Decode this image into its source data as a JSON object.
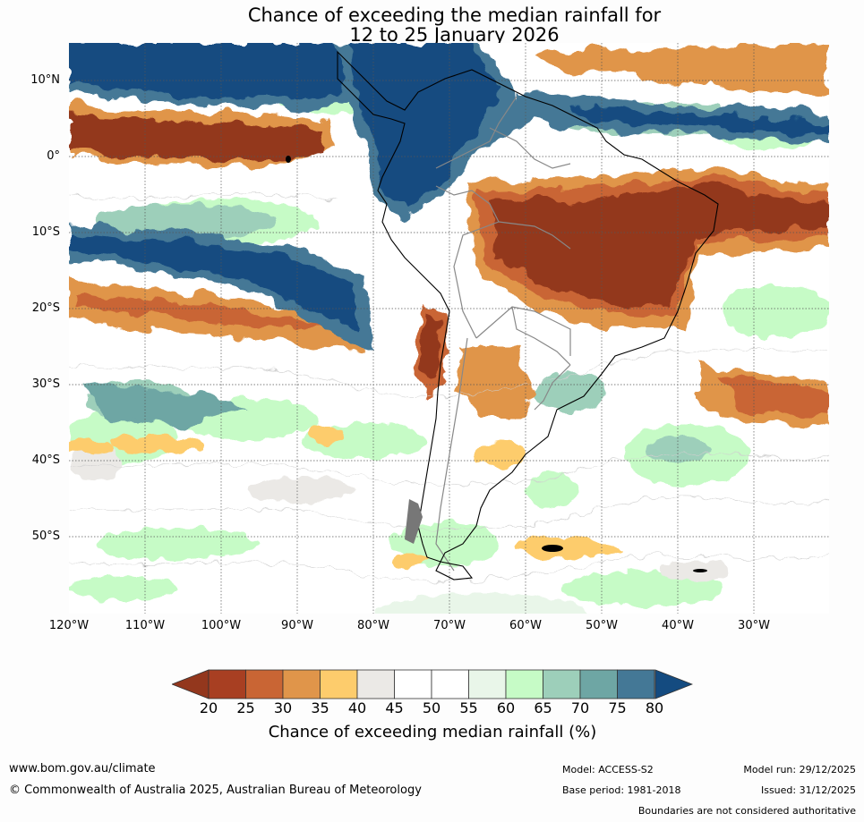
{
  "title": {
    "line1": "Chance of exceeding the median rainfall for",
    "line2": "12 to 25 January 2026"
  },
  "map": {
    "lat_labels": [
      "10°N",
      "0°",
      "10°S",
      "20°S",
      "30°S",
      "40°S",
      "50°S"
    ],
    "lon_labels": [
      "120°W",
      "110°W",
      "100°W",
      "90°W",
      "80°W",
      "70°W",
      "60°W",
      "50°W",
      "40°W",
      "30°W"
    ]
  },
  "colorbar": {
    "ticks": [
      "20",
      "25",
      "30",
      "35",
      "40",
      "45",
      "50",
      "55",
      "60",
      "65",
      "70",
      "75",
      "80"
    ],
    "colors": [
      "#a83f22",
      "#c96534",
      "#e0954a",
      "#fdcc6c",
      "#ebe9e6",
      "#ffffff",
      "#ffffff",
      "#e9f6e9",
      "#c6fbc6",
      "#9dcfba",
      "#6ea6a4",
      "#447896"
    ],
    "under_color": "#93371d",
    "over_color": "#144b80",
    "label": "Chance of exceeding median rainfall (%)"
  },
  "footer": {
    "url": "www.bom.gov.au/climate",
    "copyright": "© Commonwealth of Australia 2025, Australian Bureau of Meteorology",
    "model": "Model: ACCESS-S2",
    "base_period": "Base period: 1981-2018",
    "model_run": "Model run: 29/12/2025",
    "issued": "Issued: 31/12/2025",
    "boundaries_note": "Boundaries are not considered authoritative"
  }
}
